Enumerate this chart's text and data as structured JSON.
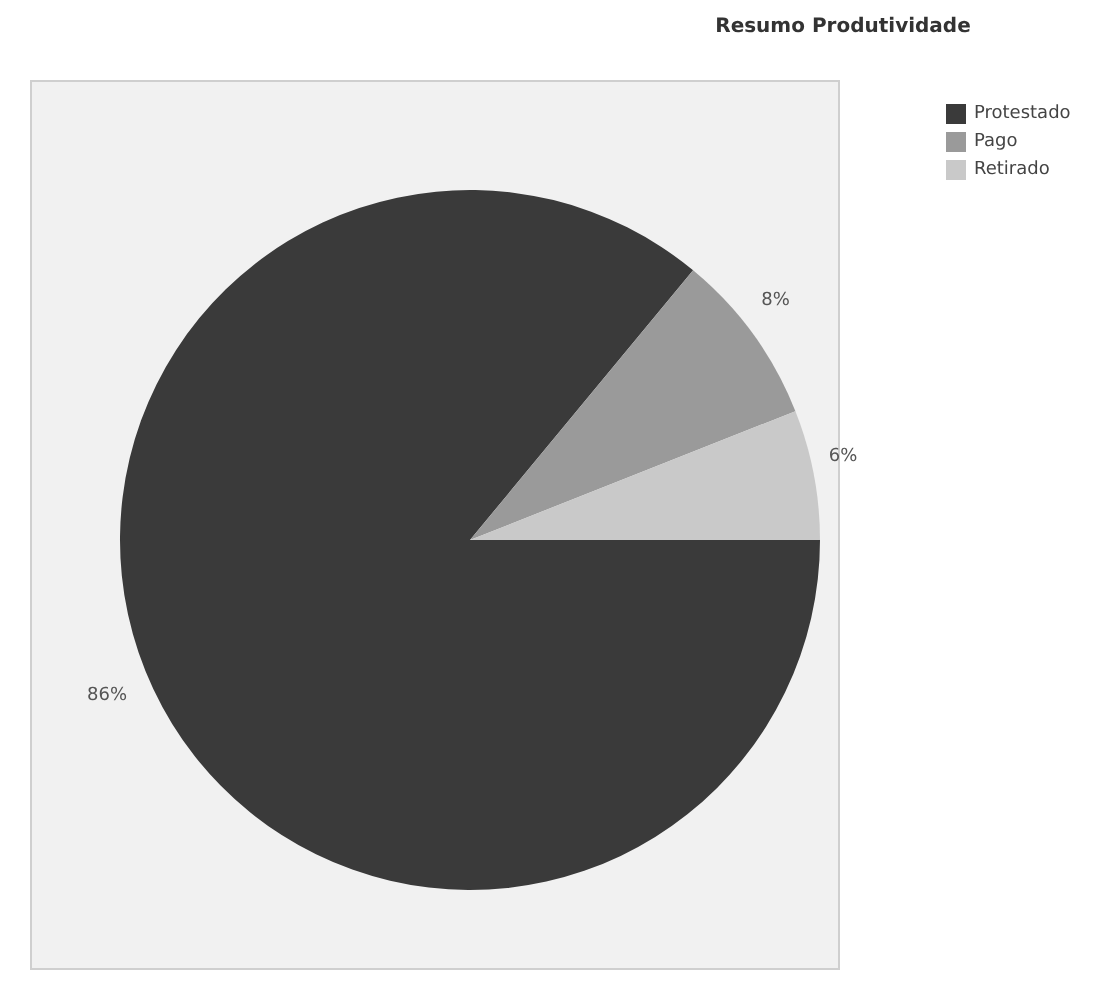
{
  "chart_data": {
    "type": "pie",
    "title": "Resumo Produtividade",
    "categories": [
      "Protestado",
      "Pago",
      "Retirado"
    ],
    "values": [
      86,
      8,
      6
    ],
    "colors": [
      "#3a3a3a",
      "#9a9a9a",
      "#c9c9c9"
    ],
    "value_labels": [
      "86%",
      "8%",
      "6%"
    ],
    "legend": "top right"
  }
}
